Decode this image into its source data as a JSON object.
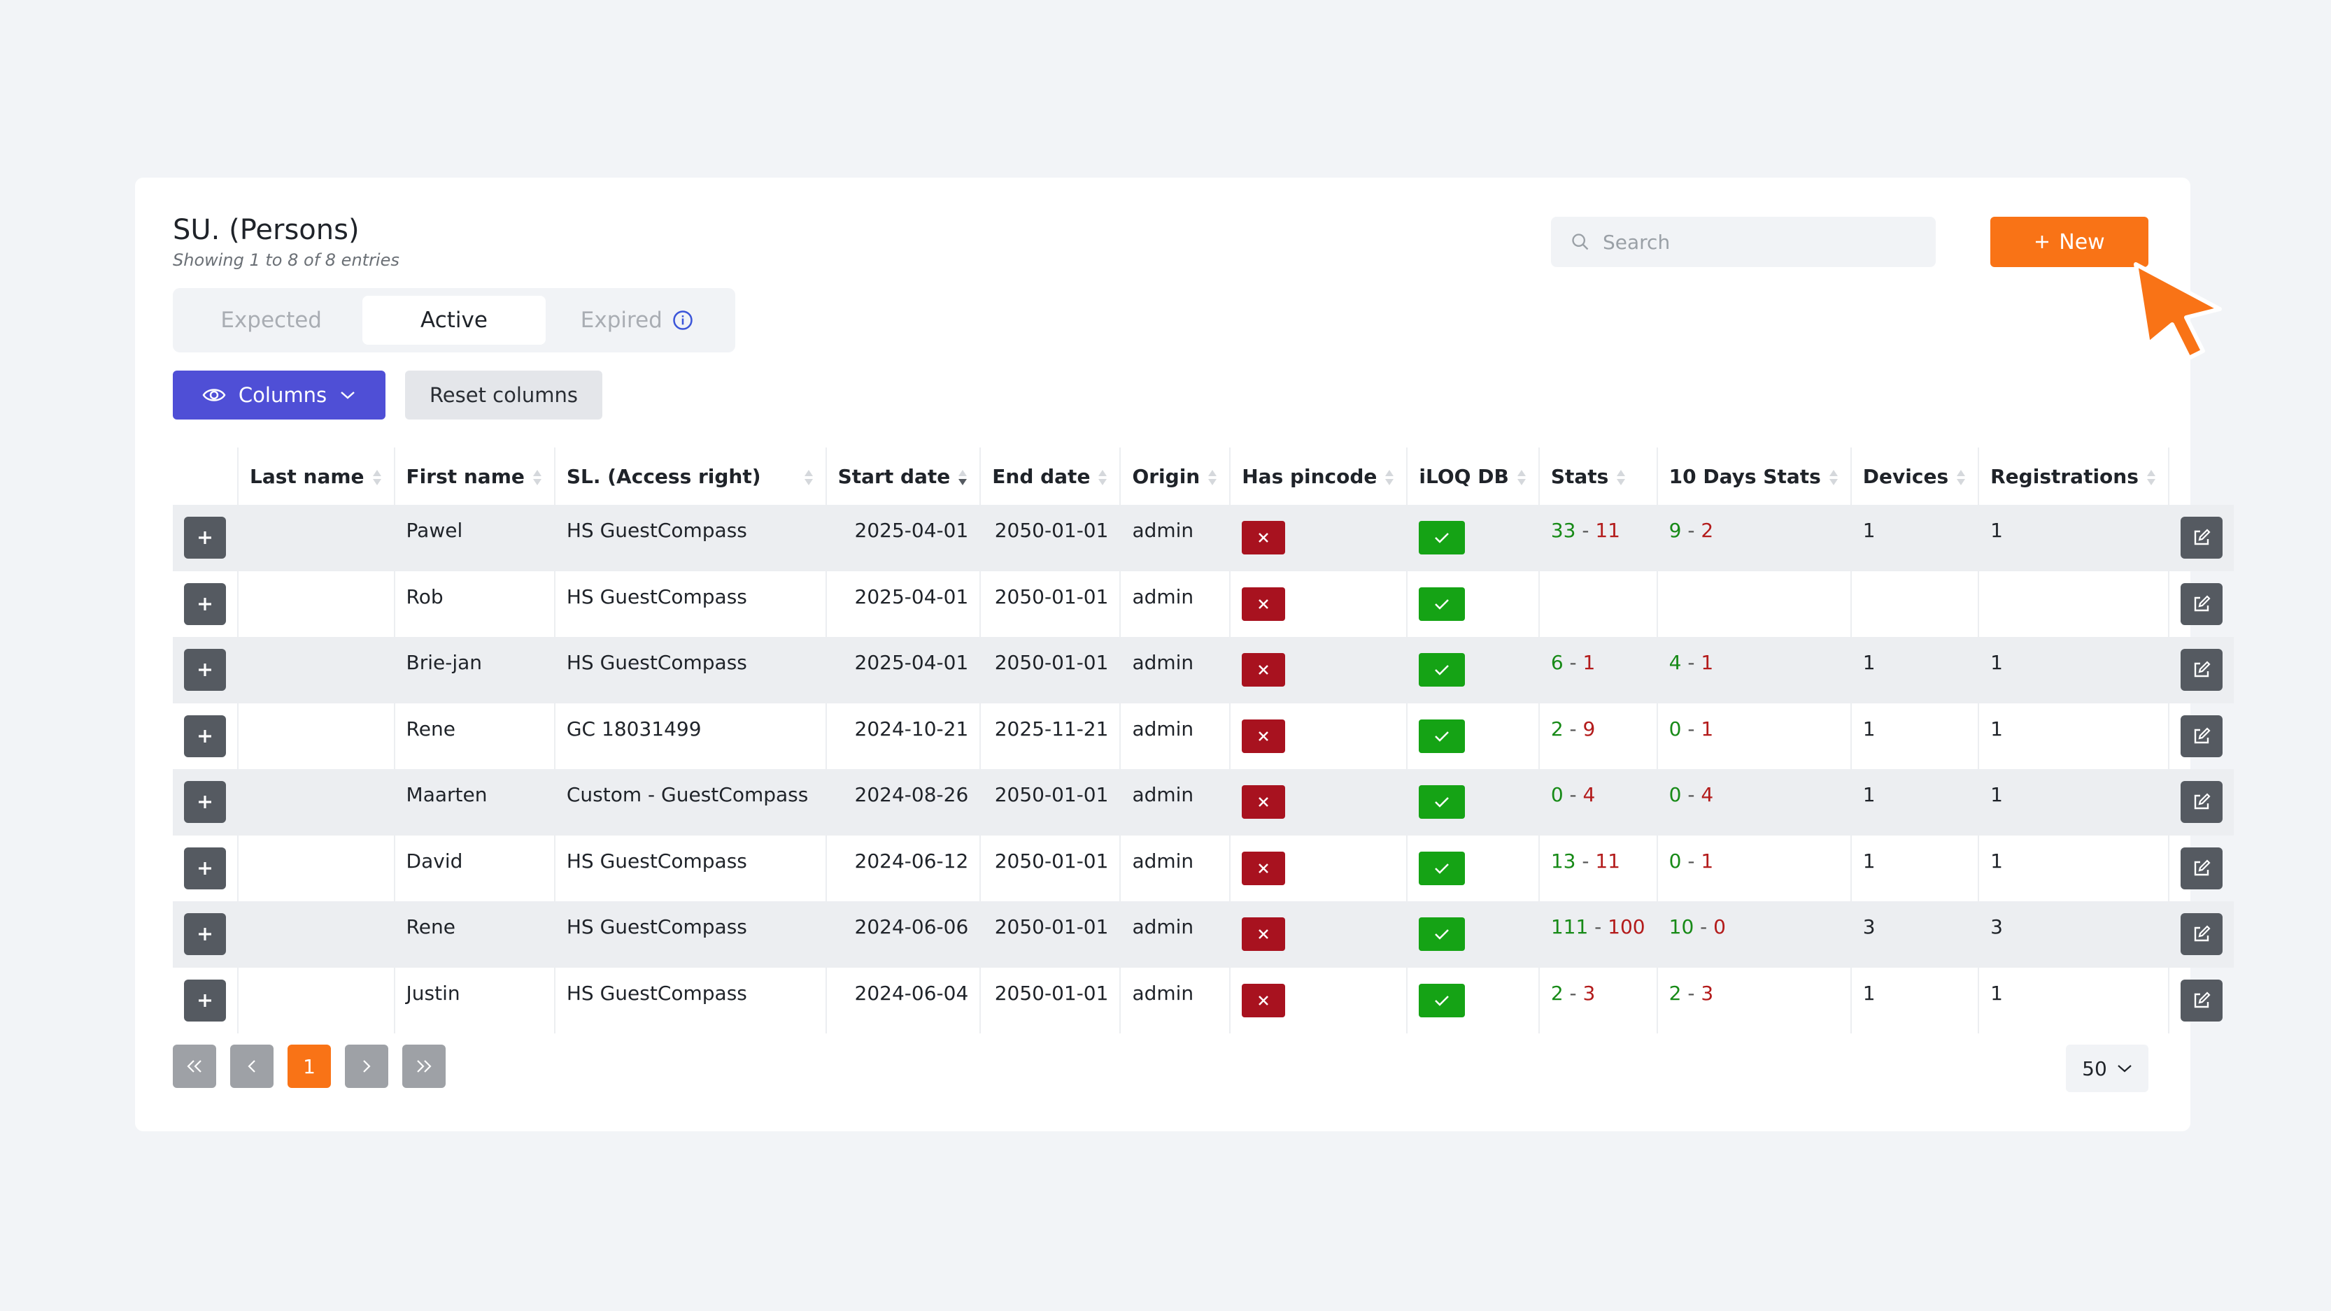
{
  "header": {
    "title": "SU. (Persons)",
    "subtitle": "Showing 1 to 8 of 8 entries"
  },
  "tabs": [
    {
      "label": "Expected",
      "active": false
    },
    {
      "label": "Active",
      "active": true
    },
    {
      "label": "Expired",
      "active": false,
      "icon": "info-icon"
    }
  ],
  "toolbar": {
    "columns_label": "Columns",
    "reset_label": "Reset columns",
    "search_placeholder": "Search",
    "new_label": "New"
  },
  "colors": {
    "primary": "#4f4fd6",
    "accent": "#f97316",
    "success": "#15a315",
    "danger": "#a8121f"
  },
  "table": {
    "columns": [
      "Last name",
      "First name",
      "SL. (Access right)",
      "Start date",
      "End date",
      "Origin",
      "Has pincode",
      "iLOQ DB",
      "Stats",
      "10 Days Stats",
      "Devices",
      "Registrations"
    ],
    "sorted_column": "Start date",
    "rows": [
      {
        "last_name": "",
        "first_name": "Pawel",
        "access_right": "HS GuestCompass",
        "start": "2025-04-01",
        "end": "2050-01-01",
        "origin": "admin",
        "has_pincode": false,
        "iloq_db": true,
        "stats_a": "33",
        "stats_b": "11",
        "d10_a": "9",
        "d10_b": "2",
        "devices": "1",
        "registrations": "1"
      },
      {
        "last_name": "",
        "first_name": "Rob",
        "access_right": "HS GuestCompass",
        "start": "2025-04-01",
        "end": "2050-01-01",
        "origin": "admin",
        "has_pincode": false,
        "iloq_db": true,
        "stats_a": "",
        "stats_b": "",
        "d10_a": "",
        "d10_b": "",
        "devices": "",
        "registrations": ""
      },
      {
        "last_name": "",
        "first_name": "Brie-jan",
        "access_right": "HS GuestCompass",
        "start": "2025-04-01",
        "end": "2050-01-01",
        "origin": "admin",
        "has_pincode": false,
        "iloq_db": true,
        "stats_a": "6",
        "stats_b": "1",
        "d10_a": "4",
        "d10_b": "1",
        "devices": "1",
        "registrations": "1"
      },
      {
        "last_name": "",
        "first_name": "Rene",
        "access_right": "GC 18031499",
        "start": "2024-10-21",
        "end": "2025-11-21",
        "origin": "admin",
        "has_pincode": false,
        "iloq_db": true,
        "stats_a": "2",
        "stats_b": "9",
        "d10_a": "0",
        "d10_b": "1",
        "devices": "1",
        "registrations": "1"
      },
      {
        "last_name": "",
        "first_name": "Maarten",
        "access_right": "Custom - GuestCompass",
        "start": "2024-08-26",
        "end": "2050-01-01",
        "origin": "admin",
        "has_pincode": false,
        "iloq_db": true,
        "stats_a": "0",
        "stats_b": "4",
        "d10_a": "0",
        "d10_b": "4",
        "devices": "1",
        "registrations": "1"
      },
      {
        "last_name": "",
        "first_name": "David",
        "access_right": "HS GuestCompass",
        "start": "2024-06-12",
        "end": "2050-01-01",
        "origin": "admin",
        "has_pincode": false,
        "iloq_db": true,
        "stats_a": "13",
        "stats_b": "11",
        "d10_a": "0",
        "d10_b": "1",
        "devices": "1",
        "registrations": "1"
      },
      {
        "last_name": "",
        "first_name": "Rene",
        "access_right": "HS GuestCompass",
        "start": "2024-06-06",
        "end": "2050-01-01",
        "origin": "admin",
        "has_pincode": false,
        "iloq_db": true,
        "stats_a": "111",
        "stats_b": "100",
        "d10_a": "10",
        "d10_b": "0",
        "devices": "3",
        "registrations": "3"
      },
      {
        "last_name": "",
        "first_name": "Justin",
        "access_right": "HS GuestCompass",
        "start": "2024-06-04",
        "end": "2050-01-01",
        "origin": "admin",
        "has_pincode": false,
        "iloq_db": true,
        "stats_a": "2",
        "stats_b": "3",
        "d10_a": "2",
        "d10_b": "3",
        "devices": "1",
        "registrations": "1"
      }
    ]
  },
  "pagination": {
    "current_page": "1",
    "per_page": "50"
  }
}
